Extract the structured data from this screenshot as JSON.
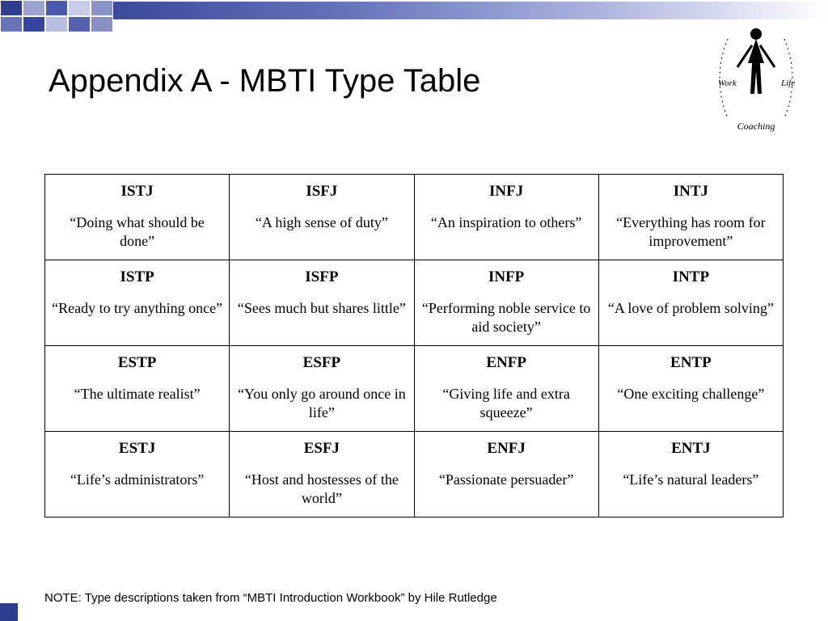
{
  "title": "Appendix A - MBTI Type Table",
  "note": "NOTE: Type descriptions taken from “MBTI Introduction Workbook” by Hile Rutledge",
  "logo": {
    "left_label": "Work",
    "right_label": "Life",
    "bottom_label": "Coaching"
  },
  "table": {
    "rows": [
      [
        {
          "code": "ISTJ",
          "quote": "“Doing what should be done”"
        },
        {
          "code": "ISFJ",
          "quote": "“A high sense of duty”"
        },
        {
          "code": "INFJ",
          "quote": "“An inspiration to others”"
        },
        {
          "code": "INTJ",
          "quote": "“Everything has room for improvement”"
        }
      ],
      [
        {
          "code": "ISTP",
          "quote": "“Ready to try anything once”"
        },
        {
          "code": "ISFP",
          "quote": "“Sees much but shares little”"
        },
        {
          "code": "INFP",
          "quote": "“Performing noble service to aid society”"
        },
        {
          "code": "INTP",
          "quote": "“A love of problem solving”"
        }
      ],
      [
        {
          "code": "ESTP",
          "quote": "“The ultimate realist”"
        },
        {
          "code": "ESFP",
          "quote": "“You only go around once in life”"
        },
        {
          "code": "ENFP",
          "quote": "“Giving life and extra squeeze”"
        },
        {
          "code": "ENTP",
          "quote": "“One exciting challenge”"
        }
      ],
      [
        {
          "code": "ESTJ",
          "quote": "“Life’s administrators”"
        },
        {
          "code": "ESFJ",
          "quote": "“Host and hostesses of the world”"
        },
        {
          "code": "ENFJ",
          "quote": "“Passionate persuader”"
        },
        {
          "code": "ENTJ",
          "quote": "“Life’s natural leaders”"
        }
      ]
    ]
  },
  "colors": {
    "topbar_squares": [
      "#2d3e8f",
      "#9aa3d2",
      "#4a5aad",
      "#c7cde8",
      "#8a93c8",
      "#6a74b8",
      "#3545a0",
      "#b8bee0",
      "#5560b0",
      "#8890c4"
    ],
    "border": "#000000",
    "background": "#ffffff"
  }
}
